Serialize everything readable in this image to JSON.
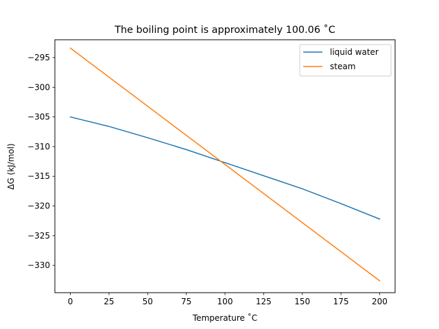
{
  "chart_data": {
    "type": "line",
    "title": "The boiling point is approximately 100.06 ˚C",
    "xlabel": "Temperature ˚C",
    "ylabel": "ΔG (kJ/mol)",
    "xlim": [
      -10,
      210
    ],
    "ylim": [
      -334.6,
      -292.0
    ],
    "xticks": [
      0,
      25,
      50,
      75,
      100,
      125,
      150,
      175,
      200
    ],
    "yticks": [
      -295,
      -300,
      -305,
      -310,
      -315,
      -320,
      -325,
      -330
    ],
    "grid": false,
    "legend_position": "top-right",
    "series": [
      {
        "name": "liquid water",
        "color": "#1f77b4",
        "x": [
          0,
          25,
          50,
          75,
          100,
          125,
          150,
          175,
          200
        ],
        "y": [
          -305.0,
          -306.6,
          -308.5,
          -310.5,
          -312.7,
          -314.9,
          -317.1,
          -319.6,
          -322.2
        ]
      },
      {
        "name": "steam",
        "color": "#ff7f0e",
        "x": [
          0,
          200
        ],
        "y": [
          -293.4,
          -332.6
        ]
      }
    ]
  }
}
